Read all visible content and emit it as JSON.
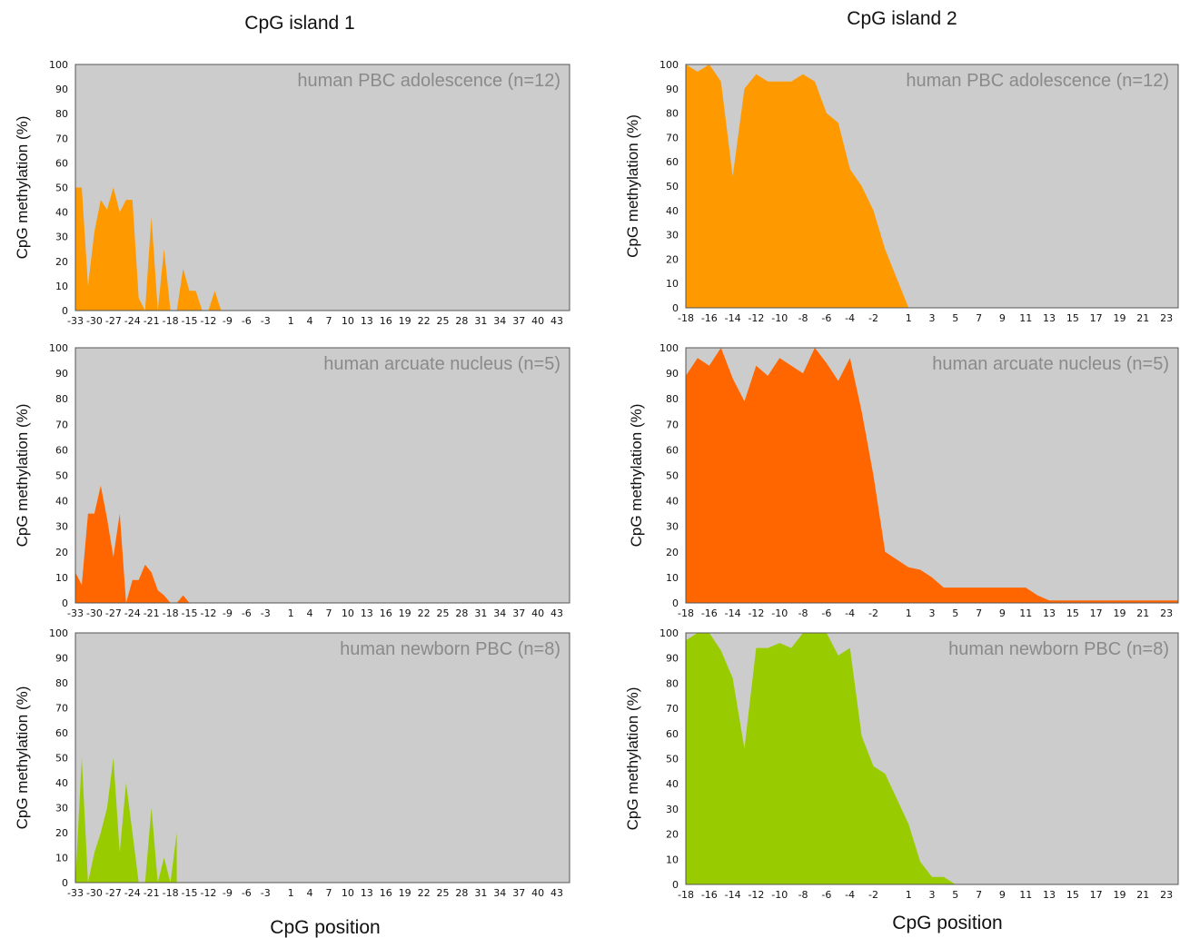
{
  "figure": {
    "column_titles": [
      "CpG island 1",
      "CpG island 2"
    ],
    "x_axis_label": "CpG position",
    "y_axis_label": "CpG methylation (%)"
  },
  "chart_data": [
    {
      "type": "area",
      "title": "human PBC adolescence (n=12)",
      "color": "#ff9900",
      "xlabel": "",
      "ylabel": "CpG methylation (%)",
      "ylim": [
        0,
        100
      ],
      "xlim": [
        -33,
        45
      ],
      "xticks": [
        -33,
        -30,
        -27,
        -24,
        -21,
        -18,
        -15,
        -12,
        -9,
        -6,
        -3,
        1,
        4,
        7,
        10,
        13,
        16,
        19,
        22,
        25,
        28,
        31,
        34,
        37,
        40,
        43
      ],
      "yticks": [
        0,
        10,
        20,
        30,
        40,
        50,
        60,
        70,
        80,
        90,
        100
      ],
      "series": [
        {
          "x": [
            -33,
            -32,
            -31,
            -30,
            -29,
            -28,
            -27,
            -26,
            -25,
            -24,
            -23,
            -22,
            -21,
            -20,
            -19,
            -18,
            -17,
            -16,
            -15,
            -14,
            -13,
            -12,
            -11,
            -10
          ],
          "y": [
            50,
            50,
            10,
            32,
            45,
            41,
            50,
            40,
            45,
            45,
            5,
            0,
            38,
            0,
            25,
            0,
            0,
            17,
            8,
            8,
            0,
            0,
            8,
            0
          ]
        }
      ]
    },
    {
      "type": "area",
      "title": "human PBC adolescence (n=12)",
      "color": "#ff9900",
      "xlabel": "",
      "ylabel": "CpG methylation (%)",
      "ylim": [
        0,
        100
      ],
      "xlim": [
        -18,
        24
      ],
      "xticks": [
        -18,
        -16,
        -14,
        -12,
        -10,
        -8,
        -6,
        -4,
        -2,
        1,
        3,
        5,
        7,
        9,
        11,
        13,
        15,
        17,
        19,
        21,
        23
      ],
      "yticks": [
        0,
        10,
        20,
        30,
        40,
        50,
        60,
        70,
        80,
        90,
        100
      ],
      "series": [
        {
          "x": [
            -18,
            -17,
            -16,
            -15,
            -14,
            -13,
            -12,
            -11,
            -10,
            -9,
            -8,
            -7,
            -6,
            -5,
            -4,
            -3,
            -2,
            -1,
            1
          ],
          "y": [
            100,
            97,
            100,
            93,
            54,
            90,
            96,
            93,
            93,
            93,
            96,
            93,
            80,
            76,
            57,
            50,
            40,
            24,
            0
          ]
        }
      ]
    },
    {
      "type": "area",
      "title": "human arcuate nucleus (n=5)",
      "color": "#ff6600",
      "xlabel": "",
      "ylabel": "CpG methylation (%)",
      "ylim": [
        0,
        100
      ],
      "xlim": [
        -33,
        45
      ],
      "xticks": [
        -33,
        -30,
        -27,
        -24,
        -21,
        -18,
        -15,
        -12,
        -9,
        -6,
        -3,
        1,
        4,
        7,
        10,
        13,
        16,
        19,
        22,
        25,
        28,
        31,
        34,
        37,
        40,
        43
      ],
      "yticks": [
        0,
        10,
        20,
        30,
        40,
        50,
        60,
        70,
        80,
        90,
        100
      ],
      "series": [
        {
          "x": [
            -33,
            -32,
            -31,
            -30,
            -29,
            -28,
            -27,
            -26,
            -25,
            -24,
            -23,
            -22,
            -21,
            -20,
            -19,
            -18,
            -17,
            -16,
            -15
          ],
          "y": [
            12,
            7,
            35,
            35,
            46,
            33,
            18,
            35,
            0,
            9,
            9,
            15,
            12,
            5,
            3,
            0,
            0,
            3,
            0
          ]
        }
      ]
    },
    {
      "type": "area",
      "title": "human arcuate nucleus (n=5)",
      "color": "#ff6600",
      "xlabel": "",
      "ylabel": "CpG methylation (%)",
      "ylim": [
        0,
        100
      ],
      "xlim": [
        -18,
        24
      ],
      "xticks": [
        -18,
        -16,
        -14,
        -12,
        -10,
        -8,
        -6,
        -4,
        -2,
        1,
        3,
        5,
        7,
        9,
        11,
        13,
        15,
        17,
        19,
        21,
        23
      ],
      "yticks": [
        0,
        10,
        20,
        30,
        40,
        50,
        60,
        70,
        80,
        90,
        100
      ],
      "series": [
        {
          "x": [
            -18,
            -17,
            -16,
            -15,
            -14,
            -13,
            -12,
            -11,
            -10,
            -9,
            -8,
            -7,
            -6,
            -5,
            -4,
            -3,
            -2,
            -1,
            1,
            2,
            3,
            4,
            5,
            6,
            7,
            8,
            9,
            10,
            11,
            12,
            13,
            14,
            15,
            16,
            17,
            18,
            19,
            20,
            21,
            22,
            23,
            24
          ],
          "y": [
            89,
            96,
            93,
            100,
            88,
            79,
            93,
            89,
            96,
            93,
            90,
            100,
            94,
            87,
            96,
            75,
            50,
            20,
            14,
            13,
            10,
            6,
            6,
            6,
            6,
            6,
            6,
            6,
            6,
            3,
            1,
            1,
            1,
            1,
            1,
            1,
            1,
            1,
            1,
            1,
            1,
            1
          ]
        }
      ]
    },
    {
      "type": "area",
      "title": "human newborn PBC (n=8)",
      "color": "#99cc00",
      "xlabel": "CpG position",
      "ylabel": "CpG methylation (%)",
      "ylim": [
        0,
        100
      ],
      "xlim": [
        -33,
        45
      ],
      "xticks": [
        -33,
        -30,
        -27,
        -24,
        -21,
        -18,
        -15,
        -12,
        -9,
        -6,
        -3,
        1,
        4,
        7,
        10,
        13,
        16,
        19,
        22,
        25,
        28,
        31,
        34,
        37,
        40,
        43
      ],
      "yticks": [
        0,
        10,
        20,
        30,
        40,
        50,
        60,
        70,
        80,
        90,
        100
      ],
      "series": [
        {
          "x": [
            -33,
            -32,
            -31,
            -30,
            -29,
            -28,
            -27,
            -26,
            -25,
            -24,
            -23,
            -22,
            -21,
            -20,
            -19,
            -18,
            -17
          ],
          "y": [
            0,
            50,
            0,
            12,
            20,
            30,
            50,
            12,
            40,
            20,
            0,
            0,
            30,
            0,
            10,
            0,
            20
          ]
        }
      ]
    },
    {
      "type": "area",
      "title": "human newborn PBC (n=8)",
      "color": "#99cc00",
      "xlabel": "CpG position",
      "ylabel": "CpG methylation (%)",
      "ylim": [
        0,
        100
      ],
      "xlim": [
        -18,
        24
      ],
      "xticks": [
        -18,
        -16,
        -14,
        -12,
        -10,
        -8,
        -6,
        -4,
        -2,
        1,
        3,
        5,
        7,
        9,
        11,
        13,
        15,
        17,
        19,
        21,
        23
      ],
      "yticks": [
        0,
        10,
        20,
        30,
        40,
        50,
        60,
        70,
        80,
        90,
        100
      ],
      "series": [
        {
          "x": [
            -18,
            -17,
            -16,
            -15,
            -14,
            -13,
            -12,
            -11,
            -10,
            -9,
            -8,
            -7,
            -6,
            -5,
            -4,
            -3,
            -2,
            -1,
            1,
            2,
            3,
            4,
            5,
            6
          ],
          "y": [
            97,
            100,
            100,
            93,
            82,
            54,
            94,
            94,
            96,
            94,
            100,
            100,
            100,
            91,
            94,
            59,
            47,
            44,
            24,
            9,
            3,
            3,
            0,
            0
          ]
        }
      ]
    }
  ]
}
